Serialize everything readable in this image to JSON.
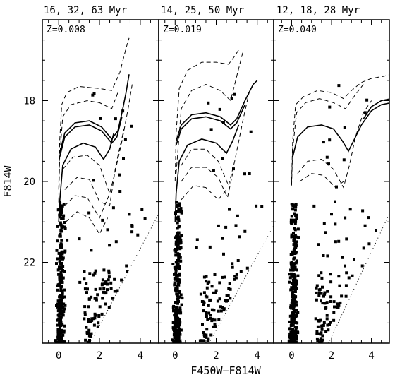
{
  "chart_data": {
    "type": "scatter",
    "ylabel": "F814W",
    "xlabel": "F450W−F814W",
    "xlim": [
      -1.0,
      5.0
    ],
    "ylim": [
      24.0,
      16.0
    ],
    "y_inverted": true,
    "x_ticks": [
      0,
      2,
      4
    ],
    "y_ticks": [
      18,
      20,
      22
    ],
    "panels": [
      {
        "title": "16, 32, 63 Myr",
        "z_label": "Z=0.008",
        "isochrones": [
          {
            "style": "dashed",
            "points": [
              [
                0.0,
                20.2
              ],
              [
                0.05,
                19.0
              ],
              [
                0.15,
                18.1
              ],
              [
                0.4,
                17.8
              ],
              [
                1.0,
                17.65
              ],
              [
                2.0,
                17.7
              ],
              [
                2.6,
                17.75
              ],
              [
                3.0,
                17.3
              ],
              [
                3.3,
                16.7
              ],
              [
                3.45,
                16.45
              ]
            ]
          },
          {
            "style": "dashed",
            "points": [
              [
                0.0,
                20.5
              ],
              [
                0.05,
                19.4
              ],
              [
                0.2,
                18.4
              ],
              [
                0.6,
                18.1
              ],
              [
                1.4,
                18.0
              ],
              [
                2.0,
                18.05
              ],
              [
                2.6,
                18.2
              ],
              [
                2.9,
                17.8
              ]
            ]
          },
          {
            "style": "dashed",
            "points": [
              [
                0.2,
                19.7
              ],
              [
                0.7,
                19.4
              ],
              [
                1.4,
                19.35
              ],
              [
                2.0,
                19.6
              ],
              [
                2.5,
                20.3
              ],
              [
                2.7,
                19.9
              ],
              [
                3.1,
                19.0
              ],
              [
                3.4,
                18.2
              ],
              [
                3.6,
                17.6
              ]
            ]
          },
          {
            "style": "dashed",
            "points": [
              [
                0.3,
                20.2
              ],
              [
                0.9,
                19.9
              ],
              [
                1.5,
                19.95
              ],
              [
                2.0,
                20.5
              ],
              [
                2.5,
                20.6
              ],
              [
                2.8,
                19.6
              ],
              [
                3.2,
                18.7
              ]
            ]
          },
          {
            "style": "dashed",
            "points": [
              [
                0.3,
                20.6
              ],
              [
                0.8,
                20.35
              ],
              [
                1.4,
                20.4
              ],
              [
                2.0,
                20.9
              ],
              [
                2.5,
                20.3
              ]
            ]
          },
          {
            "style": "dashed",
            "points": [
              [
                0.35,
                21.0
              ],
              [
                0.9,
                20.75
              ],
              [
                1.5,
                20.9
              ],
              [
                2.0,
                21.3
              ],
              [
                2.4,
                20.9
              ]
            ]
          },
          {
            "style": "solid",
            "points": [
              [
                0.05,
                19.3
              ],
              [
                0.3,
                18.8
              ],
              [
                0.8,
                18.55
              ],
              [
                1.5,
                18.5
              ],
              [
                2.1,
                18.65
              ],
              [
                2.6,
                18.95
              ],
              [
                2.9,
                18.75
              ],
              [
                3.1,
                18.3
              ],
              [
                3.3,
                17.8
              ],
              [
                3.45,
                17.35
              ]
            ]
          },
          {
            "style": "solid",
            "points": [
              [
                0.05,
                19.4
              ],
              [
                0.3,
                18.9
              ],
              [
                0.8,
                18.65
              ],
              [
                1.5,
                18.6
              ],
              [
                2.1,
                18.75
              ],
              [
                2.6,
                19.05
              ],
              [
                2.85,
                18.9
              ],
              [
                3.1,
                18.4
              ]
            ]
          },
          {
            "style": "solid",
            "points": [
              [
                0.0,
                21.0
              ],
              [
                0.05,
                20.5
              ],
              [
                0.2,
                19.6
              ],
              [
                0.6,
                19.2
              ],
              [
                1.2,
                19.05
              ],
              [
                1.8,
                19.15
              ],
              [
                2.2,
                19.45
              ],
              [
                2.5,
                19.2
              ],
              [
                2.7,
                18.8
              ]
            ]
          }
        ],
        "limit_line": [
          [
            1.55,
            24.0
          ],
          [
            4.9,
            20.8
          ]
        ]
      },
      {
        "title": "14, 25, 50 Myr",
        "z_label": "Z=0.019",
        "isochrones": [
          {
            "style": "dashed",
            "points": [
              [
                0.0,
                20.0
              ],
              [
                0.05,
                18.8
              ],
              [
                0.2,
                17.7
              ],
              [
                0.6,
                17.25
              ],
              [
                1.3,
                17.05
              ],
              [
                2.0,
                17.05
              ],
              [
                2.6,
                17.1
              ],
              [
                2.9,
                16.9
              ],
              [
                3.15,
                16.7
              ]
            ]
          },
          {
            "style": "dashed",
            "points": [
              [
                0.05,
                19.8
              ],
              [
                0.3,
                18.2
              ],
              [
                0.8,
                17.75
              ],
              [
                1.5,
                17.6
              ],
              [
                2.2,
                17.75
              ],
              [
                2.7,
                18.0
              ],
              [
                3.0,
                17.4
              ],
              [
                3.3,
                16.8
              ]
            ]
          },
          {
            "style": "dashed",
            "points": [
              [
                0.3,
                19.6
              ],
              [
                0.8,
                19.2
              ],
              [
                1.5,
                19.2
              ],
              [
                2.1,
                19.5
              ],
              [
                2.6,
                20.1
              ],
              [
                2.9,
                19.5
              ],
              [
                3.3,
                18.5
              ],
              [
                3.6,
                17.8
              ]
            ]
          },
          {
            "style": "dashed",
            "points": [
              [
                0.3,
                20.0
              ],
              [
                0.8,
                19.65
              ],
              [
                1.5,
                19.65
              ],
              [
                2.1,
                19.9
              ],
              [
                2.55,
                20.4
              ],
              [
                2.8,
                19.8
              ]
            ]
          },
          {
            "style": "dashed",
            "points": [
              [
                0.3,
                20.45
              ],
              [
                0.9,
                20.1
              ],
              [
                1.5,
                20.15
              ],
              [
                2.1,
                20.45
              ],
              [
                2.5,
                20.2
              ]
            ]
          },
          {
            "style": "solid",
            "points": [
              [
                0.05,
                19.0
              ],
              [
                0.3,
                18.6
              ],
              [
                0.8,
                18.35
              ],
              [
                1.5,
                18.3
              ],
              [
                2.2,
                18.4
              ],
              [
                2.7,
                18.6
              ],
              [
                3.0,
                18.45
              ],
              [
                3.4,
                18.0
              ],
              [
                3.8,
                17.6
              ],
              [
                4.0,
                17.5
              ]
            ]
          },
          {
            "style": "solid",
            "points": [
              [
                0.05,
                19.1
              ],
              [
                0.3,
                18.7
              ],
              [
                0.8,
                18.45
              ],
              [
                1.5,
                18.4
              ],
              [
                2.2,
                18.5
              ],
              [
                2.7,
                18.7
              ],
              [
                3.0,
                18.55
              ],
              [
                3.4,
                18.1
              ]
            ]
          },
          {
            "style": "solid",
            "points": [
              [
                0.0,
                21.0
              ],
              [
                0.05,
                20.3
              ],
              [
                0.2,
                19.5
              ],
              [
                0.6,
                19.1
              ],
              [
                1.3,
                18.95
              ],
              [
                2.0,
                19.05
              ],
              [
                2.5,
                19.3
              ],
              [
                2.8,
                19.0
              ],
              [
                3.1,
                18.6
              ]
            ]
          }
        ],
        "limit_line": [
          [
            1.65,
            24.0
          ],
          [
            4.9,
            21.0
          ]
        ]
      },
      {
        "title": "12, 18, 28 Myr",
        "z_label": "Z=0.040",
        "isochrones": [
          {
            "style": "dashed",
            "points": [
              [
                0.0,
                20.0
              ],
              [
                0.05,
                19.0
              ],
              [
                0.2,
                18.1
              ],
              [
                0.6,
                17.9
              ],
              [
                1.3,
                17.75
              ],
              [
                2.0,
                17.8
              ],
              [
                2.6,
                17.95
              ],
              [
                3.0,
                17.75
              ],
              [
                3.5,
                17.55
              ],
              [
                4.0,
                17.45
              ],
              [
                4.6,
                17.4
              ],
              [
                5.0,
                17.35
              ]
            ]
          },
          {
            "style": "dashed",
            "points": [
              [
                0.0,
                20.1
              ],
              [
                0.05,
                19.2
              ],
              [
                0.25,
                18.3
              ],
              [
                0.7,
                18.05
              ],
              [
                1.4,
                17.95
              ],
              [
                2.1,
                18.05
              ],
              [
                2.7,
                18.2
              ],
              [
                3.2,
                17.85
              ],
              [
                3.6,
                17.6
              ]
            ]
          },
          {
            "style": "dashed",
            "points": [
              [
                0.3,
                19.8
              ],
              [
                0.8,
                19.5
              ],
              [
                1.5,
                19.45
              ],
              [
                2.1,
                19.7
              ],
              [
                2.6,
                20.15
              ],
              [
                2.9,
                19.6
              ],
              [
                3.2,
                18.9
              ],
              [
                3.6,
                18.3
              ],
              [
                4.0,
                18.0
              ]
            ]
          },
          {
            "style": "dashed",
            "points": [
              [
                0.4,
                20.0
              ],
              [
                1.0,
                19.8
              ],
              [
                1.6,
                19.85
              ],
              [
                2.2,
                20.15
              ],
              [
                2.6,
                20.0
              ]
            ]
          },
          {
            "style": "solid",
            "points": [
              [
                0.05,
                19.4
              ],
              [
                0.3,
                18.9
              ],
              [
                0.8,
                18.65
              ],
              [
                1.5,
                18.6
              ],
              [
                2.1,
                18.7
              ],
              [
                2.55,
                19.0
              ],
              [
                2.85,
                19.25
              ],
              [
                3.1,
                19.0
              ],
              [
                3.5,
                18.6
              ],
              [
                4.0,
                18.25
              ],
              [
                4.5,
                18.1
              ],
              [
                5.0,
                18.05
              ]
            ]
          },
          {
            "style": "solid",
            "points": [
              [
                3.6,
                18.45
              ],
              [
                4.0,
                18.15
              ],
              [
                4.5,
                18.0
              ],
              [
                5.0,
                17.95
              ]
            ]
          }
        ],
        "limit_line": [
          [
            1.85,
            24.0
          ],
          [
            4.9,
            20.8
          ]
        ]
      }
    ]
  }
}
